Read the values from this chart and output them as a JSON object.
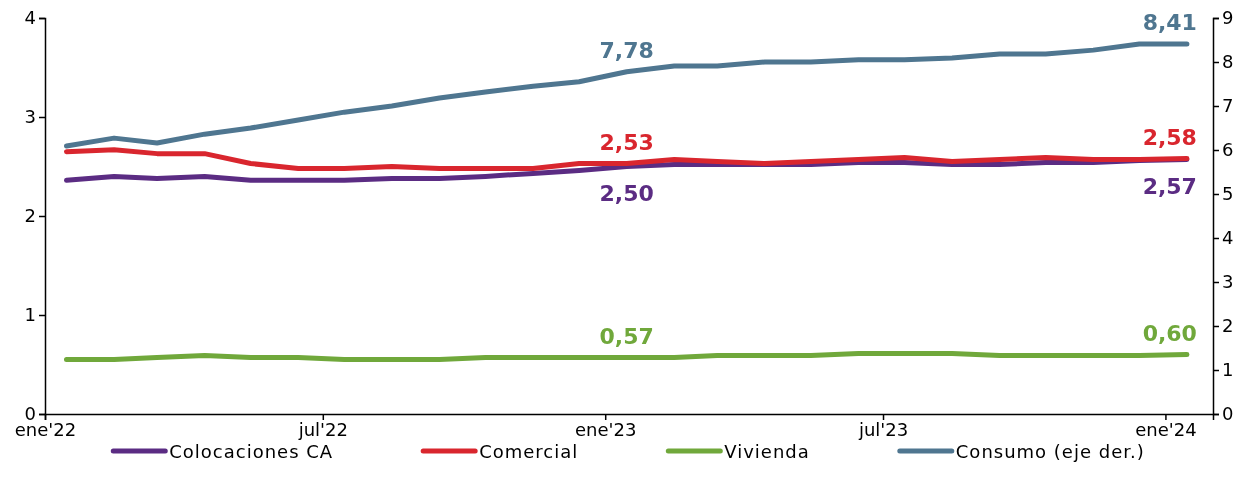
{
  "chart_data": {
    "type": "line",
    "x": [
      "2022-01-15",
      "2022-02-15",
      "2022-03-15",
      "2022-04-15",
      "2022-05-15",
      "2022-06-15",
      "2022-07-15",
      "2022-08-15",
      "2022-09-15",
      "2022-10-15",
      "2022-11-15",
      "2022-12-15",
      "2023-01-15",
      "2023-02-15",
      "2023-03-15",
      "2023-04-15",
      "2023-05-15",
      "2023-06-15",
      "2023-07-15",
      "2023-08-15",
      "2023-09-15",
      "2023-10-15",
      "2023-11-15",
      "2023-12-15",
      "2024-01-15"
    ],
    "xlim": [
      "2022-01-01",
      "2024-02-01"
    ],
    "xticks": [
      {
        "value": "2022-01-01",
        "label": "ene'22"
      },
      {
        "value": "2022-07-01",
        "label": "jul'22"
      },
      {
        "value": "2023-01-01",
        "label": "ene'23"
      },
      {
        "value": "2023-07-01",
        "label": "jul'23"
      },
      {
        "value": "2024-01-01",
        "label": "ene'24"
      }
    ],
    "ylim": [
      0,
      4
    ],
    "yticks": [
      0,
      1,
      2,
      3,
      4
    ],
    "y2lim": [
      0,
      9
    ],
    "y2ticks": [
      0,
      1,
      2,
      3,
      4,
      5,
      6,
      7,
      8,
      9
    ],
    "grid": false,
    "legend": "bottom",
    "marker": "none",
    "line_style": "solid",
    "series": [
      {
        "name": "Colocaciones CA",
        "color": "#5b2c83",
        "values": [
          2.36,
          2.4,
          2.38,
          2.4,
          2.36,
          2.36,
          2.36,
          2.38,
          2.38,
          2.4,
          2.43,
          2.46,
          2.5,
          2.52,
          2.52,
          2.52,
          2.52,
          2.54,
          2.54,
          2.52,
          2.52,
          2.54,
          2.54,
          2.56,
          2.57
        ],
        "value_labels": [
          null,
          null,
          null,
          null,
          null,
          null,
          null,
          null,
          null,
          null,
          null,
          null,
          "2,50",
          null,
          null,
          null,
          null,
          null,
          null,
          null,
          null,
          null,
          null,
          null,
          "2,57"
        ]
      },
      {
        "name": "Comercial",
        "color": "#d9262e",
        "values": [
          2.65,
          2.67,
          2.63,
          2.63,
          2.53,
          2.48,
          2.48,
          2.5,
          2.48,
          2.48,
          2.48,
          2.53,
          2.53,
          2.57,
          2.55,
          2.53,
          2.55,
          2.57,
          2.59,
          2.55,
          2.57,
          2.59,
          2.57,
          2.57,
          2.58
        ],
        "value_labels": [
          null,
          null,
          null,
          null,
          null,
          null,
          null,
          null,
          null,
          null,
          null,
          null,
          "2,53",
          null,
          null,
          null,
          null,
          null,
          null,
          null,
          null,
          null,
          null,
          null,
          "2,58"
        ]
      },
      {
        "name": "Vivienda",
        "color": "#70a83b",
        "values": [
          0.55,
          0.55,
          0.57,
          0.59,
          0.57,
          0.57,
          0.55,
          0.55,
          0.55,
          0.57,
          0.57,
          0.57,
          0.57,
          0.57,
          0.59,
          0.59,
          0.59,
          0.61,
          0.61,
          0.61,
          0.59,
          0.59,
          0.59,
          0.59,
          0.6
        ],
        "value_labels": [
          null,
          null,
          null,
          null,
          null,
          null,
          null,
          null,
          null,
          null,
          null,
          null,
          "0,57",
          null,
          null,
          null,
          null,
          null,
          null,
          null,
          null,
          null,
          null,
          null,
          "0,60"
        ]
      },
      {
        "name": "Consumo (eje der.)",
        "color": "#4f7690",
        "axis": "y2",
        "values": [
          6.09,
          6.27,
          6.16,
          6.36,
          6.5,
          6.68,
          6.86,
          7.0,
          7.18,
          7.32,
          7.45,
          7.55,
          7.78,
          7.91,
          7.91,
          8.0,
          8.0,
          8.05,
          8.05,
          8.09,
          8.18,
          8.18,
          8.27,
          8.41,
          8.41
        ],
        "value_labels": [
          null,
          null,
          null,
          null,
          null,
          null,
          null,
          null,
          null,
          null,
          null,
          null,
          "7,78",
          null,
          null,
          null,
          null,
          null,
          null,
          null,
          null,
          null,
          null,
          null,
          "8,41"
        ]
      }
    ]
  }
}
